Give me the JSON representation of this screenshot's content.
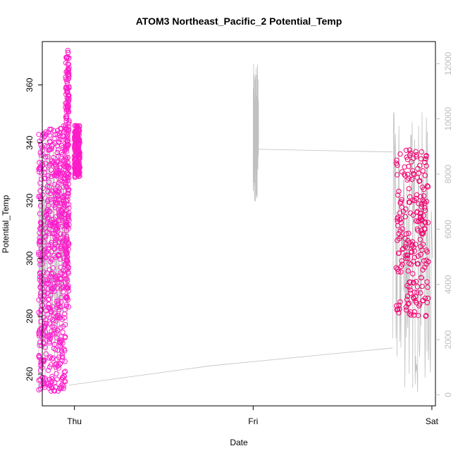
{
  "chart_data": {
    "type": "scatter",
    "title": "ATOM3 Northeast_Pacific_2 Potential_Temp",
    "xlabel": "Date",
    "ylabel": "Potential_Temp",
    "x_ticks": [
      "Thu",
      "Fri",
      "Sat"
    ],
    "xlim_days": [
      -0.18,
      2.02
    ],
    "ylim": [
      249,
      375
    ],
    "y_ticks": [
      260,
      280,
      300,
      320,
      340,
      360
    ],
    "y2lim": [
      -400,
      12800
    ],
    "y2_ticks": [
      0,
      2000,
      4000,
      6000,
      8000,
      10000,
      12000
    ],
    "grid": false,
    "colors": {
      "points_start": "#ff1fd0",
      "points_end": "#f2006a",
      "line": "#c0c0c0",
      "axes": "#000000",
      "right_axis": "#bdbdbd"
    },
    "series": [
      {
        "marker": "open-circle",
        "clusters": [
          {
            "x_days": [
              -0.2,
              -0.05
            ],
            "y_range": [
              254,
              346
            ],
            "note_density": "high"
          },
          {
            "x_days": [
              -0.05,
              -0.03
            ],
            "y_range": [
              283,
              373
            ]
          },
          {
            "x_days": [
              0.0,
              0.03
            ],
            "y_range": [
              328,
              346
            ]
          },
          {
            "x_days": [
              1.8,
              1.98
            ],
            "y_range": [
              280,
              338
            ]
          }
        ]
      },
      {
        "axis": "right",
        "type": "line",
        "segments": [
          {
            "x_days": [
              -0.2,
              -0.03
            ],
            "y_range": [
              100,
              10000
            ]
          },
          {
            "x_days": [
              -0.03,
              0.76
            ],
            "y": [
              350,
              1050
            ]
          },
          {
            "x_days": [
              0.76,
              1.78
            ],
            "y": [
              1050,
              1700
            ]
          },
          {
            "x_days": [
              1.0,
              1.03
            ],
            "y_range": [
              7000,
              12000
            ]
          },
          {
            "x_days": [
              1.03,
              1.78
            ],
            "y": [
              8900,
              8800
            ]
          },
          {
            "x_days": [
              1.78,
              2.0
            ],
            "y_range": [
              0,
              10300
            ]
          }
        ]
      }
    ]
  }
}
